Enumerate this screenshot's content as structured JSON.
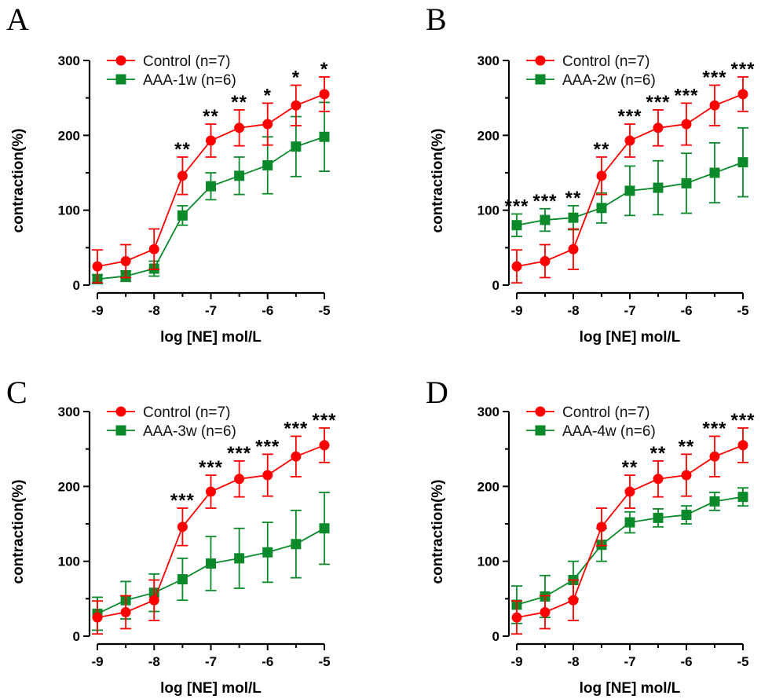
{
  "figure": {
    "series_colors": {
      "control": "#ff0000",
      "aaa": "#0a8a2a"
    }
  },
  "chart_data": [
    {
      "panel": "A",
      "type": "line",
      "xlabel": "log [NE] mol/L",
      "ylabel": "contraction(%)",
      "xlim": [
        -9,
        -5
      ],
      "ylim": [
        0,
        300
      ],
      "xticks": [
        "-9",
        "-8",
        "-7",
        "-6",
        "-5"
      ],
      "yticks": [
        "0",
        "100",
        "200",
        "300"
      ],
      "x": [
        -9,
        -8.5,
        -8,
        -7.5,
        -7,
        -6.5,
        -6,
        -5.5,
        -5
      ],
      "series": [
        {
          "name": "Control (n=7)",
          "marker": "circle",
          "values": [
            25,
            32,
            48,
            146,
            193,
            210,
            215,
            240,
            255
          ],
          "errors": [
            22,
            22,
            27,
            25,
            22,
            24,
            28,
            27,
            23
          ]
        },
        {
          "name": "AAA-1w (n=6)",
          "marker": "square",
          "values": [
            8,
            12,
            22,
            93,
            132,
            146,
            160,
            185,
            198
          ],
          "errors": [
            6,
            7,
            10,
            13,
            18,
            25,
            38,
            40,
            46
          ]
        }
      ],
      "annotations": [
        "",
        "",
        "",
        "**",
        "**",
        "**",
        "*",
        "*",
        "*"
      ]
    },
    {
      "panel": "B",
      "type": "line",
      "xlabel": "log [NE] mol/L",
      "ylabel": "contraction(%)",
      "xlim": [
        -9,
        -5
      ],
      "ylim": [
        0,
        300
      ],
      "xticks": [
        "-9",
        "-8",
        "-7",
        "-6",
        "-5"
      ],
      "yticks": [
        "0",
        "100",
        "200",
        "300"
      ],
      "x": [
        -9,
        -8.5,
        -8,
        -7.5,
        -7,
        -6.5,
        -6,
        -5.5,
        -5
      ],
      "series": [
        {
          "name": "Control (n=7)",
          "marker": "circle",
          "values": [
            25,
            32,
            48,
            146,
            193,
            210,
            215,
            240,
            255
          ],
          "errors": [
            22,
            22,
            27,
            25,
            22,
            24,
            28,
            27,
            23
          ]
        },
        {
          "name": "AAA-2w (n=6)",
          "marker": "square",
          "values": [
            80,
            87,
            90,
            103,
            126,
            130,
            136,
            150,
            164
          ],
          "errors": [
            15,
            15,
            16,
            20,
            33,
            36,
            40,
            40,
            46
          ]
        }
      ],
      "annotations": [
        "***",
        "***",
        "**",
        "**",
        "***",
        "***",
        "***",
        "***",
        "***"
      ]
    },
    {
      "panel": "C",
      "type": "line",
      "xlabel": "log [NE] mol/L",
      "ylabel": "contraction(%)",
      "xlim": [
        -9,
        -5
      ],
      "ylim": [
        0,
        300
      ],
      "xticks": [
        "-9",
        "-8",
        "-7",
        "-6",
        "-5"
      ],
      "yticks": [
        "0",
        "100",
        "200",
        "300"
      ],
      "x": [
        -9,
        -8.5,
        -8,
        -7.5,
        -7,
        -6.5,
        -6,
        -5.5,
        -5
      ],
      "series": [
        {
          "name": "Control (n=7)",
          "marker": "circle",
          "values": [
            25,
            32,
            48,
            146,
            193,
            210,
            215,
            240,
            255
          ],
          "errors": [
            22,
            22,
            27,
            25,
            22,
            24,
            28,
            27,
            23
          ]
        },
        {
          "name": "AAA-3w (n=6)",
          "marker": "square",
          "values": [
            30,
            48,
            58,
            76,
            97,
            104,
            112,
            123,
            144
          ],
          "errors": [
            22,
            25,
            25,
            28,
            36,
            40,
            40,
            45,
            48
          ]
        }
      ],
      "annotations": [
        "",
        "",
        "",
        "***",
        "***",
        "***",
        "***",
        "***",
        "***"
      ]
    },
    {
      "panel": "D",
      "type": "line",
      "xlabel": "log [NE] mol/L",
      "ylabel": "contraction(%)",
      "xlim": [
        -9,
        -5
      ],
      "ylim": [
        0,
        300
      ],
      "xticks": [
        "-9",
        "-8",
        "-7",
        "-6",
        "-5"
      ],
      "yticks": [
        "0",
        "100",
        "200",
        "300"
      ],
      "x": [
        -9,
        -8.5,
        -8,
        -7.5,
        -7,
        -6.5,
        -6,
        -5.5,
        -5
      ],
      "series": [
        {
          "name": "Control (n=7)",
          "marker": "circle",
          "values": [
            25,
            32,
            48,
            146,
            193,
            210,
            215,
            240,
            255
          ],
          "errors": [
            22,
            22,
            27,
            25,
            22,
            24,
            28,
            27,
            23
          ]
        },
        {
          "name": "AAA-4w (n=6)",
          "marker": "square",
          "values": [
            42,
            53,
            75,
            122,
            152,
            158,
            162,
            180,
            186
          ],
          "errors": [
            25,
            28,
            25,
            22,
            14,
            12,
            12,
            12,
            12
          ]
        }
      ],
      "annotations": [
        "",
        "",
        "",
        "",
        "**",
        "**",
        "**",
        "***",
        "***"
      ]
    }
  ]
}
